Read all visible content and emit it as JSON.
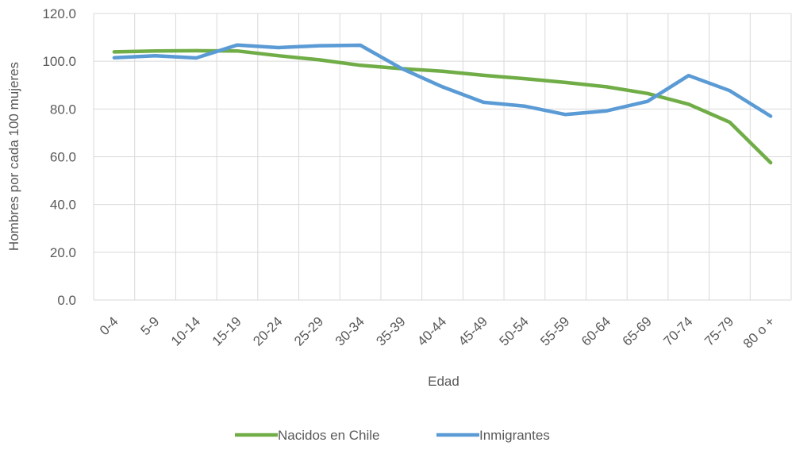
{
  "chart_data": {
    "type": "line",
    "title": "",
    "xlabel": "Edad",
    "ylabel": "Hombres por cada 100 mujeres",
    "categories": [
      "0-4",
      "5-9",
      "10-14",
      "15-19",
      "20-24",
      "25-29",
      "30-34",
      "35-39",
      "40-44",
      "45-49",
      "50-54",
      "55-59",
      "60-64",
      "65-69",
      "70-74",
      "75-79",
      "80 o +"
    ],
    "ylim": [
      0,
      120
    ],
    "yticks": [
      "0.0",
      "20.0",
      "40.0",
      "60.0",
      "80.0",
      "100.0",
      "120.0"
    ],
    "grid": true,
    "legend_position": "bottom",
    "series": [
      {
        "name": "Nacidos en Chile",
        "color": "#70AD47",
        "values": [
          103.9,
          104.3,
          104.4,
          104.3,
          102.3,
          100.6,
          98.3,
          96.9,
          95.8,
          94.1,
          92.7,
          91.1,
          89.3,
          86.5,
          82.0,
          74.5,
          57.5
        ]
      },
      {
        "name": "Inmigrantes",
        "color": "#5B9BD5",
        "values": [
          101.5,
          102.3,
          101.4,
          106.8,
          105.7,
          106.5,
          106.7,
          97.0,
          89.3,
          82.8,
          81.2,
          77.7,
          79.2,
          83.2,
          94.0,
          87.7,
          77.0
        ]
      }
    ]
  }
}
